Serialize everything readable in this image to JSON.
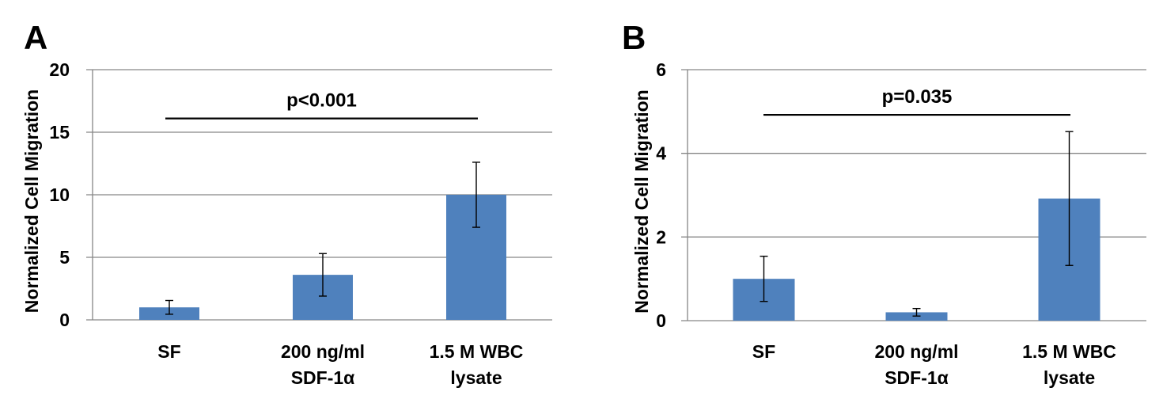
{
  "chart_data": [
    {
      "type": "bar",
      "panel": "A",
      "title": "",
      "xlabel": "",
      "ylabel": "Normalized Cell Migration",
      "categories": [
        [
          "SF"
        ],
        [
          "200 ng/ml",
          "SDF-1α"
        ],
        [
          "1.5 M WBC",
          "lysate"
        ]
      ],
      "values": [
        1.0,
        3.6,
        10.0
      ],
      "errors": [
        0.55,
        1.7,
        2.6
      ],
      "ylim": [
        0,
        20
      ],
      "yticks": [
        0,
        5,
        10,
        15,
        20
      ],
      "grid": true,
      "bar_color": "#4F81BD",
      "annotation": {
        "text": "p<0.001",
        "from_category": 0,
        "to_category": 2,
        "y": 16.1
      }
    },
    {
      "type": "bar",
      "panel": "B",
      "title": "",
      "xlabel": "",
      "ylabel": "Normalized Cell Migration",
      "categories": [
        [
          "SF"
        ],
        [
          "200 ng/ml",
          "SDF-1α"
        ],
        [
          "1.5 M WBC",
          "lysate"
        ]
      ],
      "values": [
        1.0,
        0.2,
        2.92
      ],
      "errors": [
        0.54,
        0.09,
        1.6
      ],
      "ylim": [
        0,
        6
      ],
      "yticks": [
        0,
        2,
        4,
        6
      ],
      "grid": true,
      "bar_color": "#4F81BD",
      "annotation": {
        "text": "p=0.035",
        "from_category": 0,
        "to_category": 2,
        "y": 4.92
      }
    }
  ]
}
